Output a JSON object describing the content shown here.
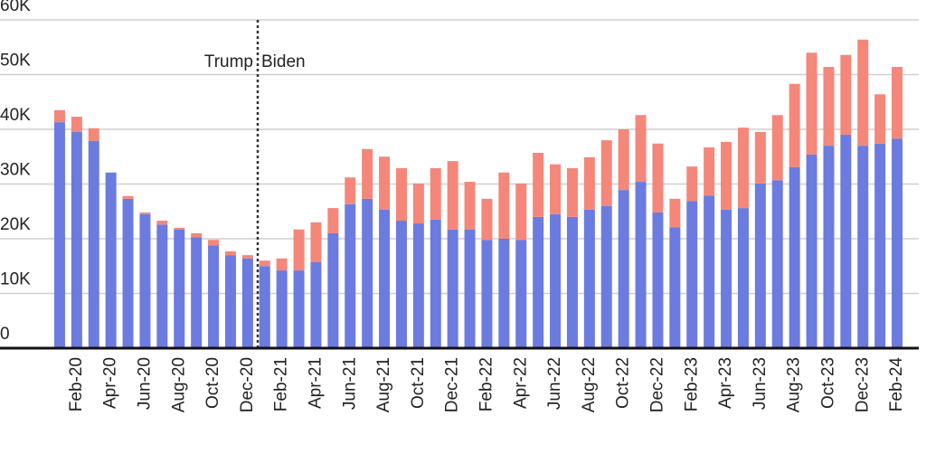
{
  "chart_data": {
    "type": "stacked_bar",
    "categories": [
      null,
      "Feb-20",
      null,
      "Apr-20",
      null,
      "Jun-20",
      null,
      "Aug-20",
      null,
      "Oct-20",
      null,
      "Dec-20",
      null,
      "Feb-21",
      null,
      "Apr-21",
      null,
      "Jun-21",
      null,
      "Aug-21",
      null,
      "Oct-21",
      null,
      "Dec-21",
      null,
      "Feb-22",
      null,
      "Apr-22",
      null,
      "Jun-22",
      null,
      "Aug-22",
      null,
      "Oct-22",
      null,
      "Dec-22",
      null,
      "Feb-23",
      null,
      "Apr-23",
      null,
      "Jun-23",
      null,
      "Aug-23",
      null,
      "Oct-23",
      null,
      "Dec-23",
      null,
      "Feb-24"
    ],
    "series": [
      {
        "color": "#6b7bdf",
        "values": [
          41300,
          39500,
          37900,
          32100,
          27300,
          24500,
          22600,
          21700,
          20300,
          18800,
          17000,
          16400,
          15000,
          14200,
          14200,
          15700,
          21000,
          26300,
          27300,
          25300,
          23300,
          22800,
          23500,
          21700,
          21700,
          19800,
          20000,
          19800,
          24000,
          24500,
          24000,
          25300,
          26000,
          28900,
          30400,
          24800,
          22100,
          26900,
          27900,
          25300,
          25600,
          30100,
          30700,
          33100,
          35400,
          37000,
          39000,
          37000,
          37400,
          38300
        ]
      },
      {
        "color": "#f4877a",
        "values": [
          2200,
          2800,
          2300,
          0,
          500,
          300,
          700,
          300,
          700,
          1000,
          700,
          600,
          1000,
          2200,
          7500,
          7300,
          4600,
          4900,
          9100,
          9700,
          9600,
          7300,
          9400,
          12500,
          8700,
          7500,
          12100,
          10300,
          11700,
          9100,
          8900,
          9600,
          12000,
          11100,
          12200,
          12600,
          5200,
          6300,
          8800,
          12400,
          14700,
          9400,
          11900,
          15200,
          18600,
          14400,
          14600,
          19400,
          9000,
          13100
        ]
      }
    ],
    "ylim": [
      0,
      60000
    ],
    "yticks": [
      {
        "value": 0,
        "label": "0"
      },
      {
        "value": 10000,
        "label": "10K"
      },
      {
        "value": 20000,
        "label": "20K"
      },
      {
        "value": 30000,
        "label": "30K"
      },
      {
        "value": 40000,
        "label": "40K"
      },
      {
        "value": 50000,
        "label": "50K"
      },
      {
        "value": 60000,
        "label": "60K"
      }
    ],
    "grid": true,
    "annotations": [
      "Trump",
      "Biden"
    ]
  }
}
